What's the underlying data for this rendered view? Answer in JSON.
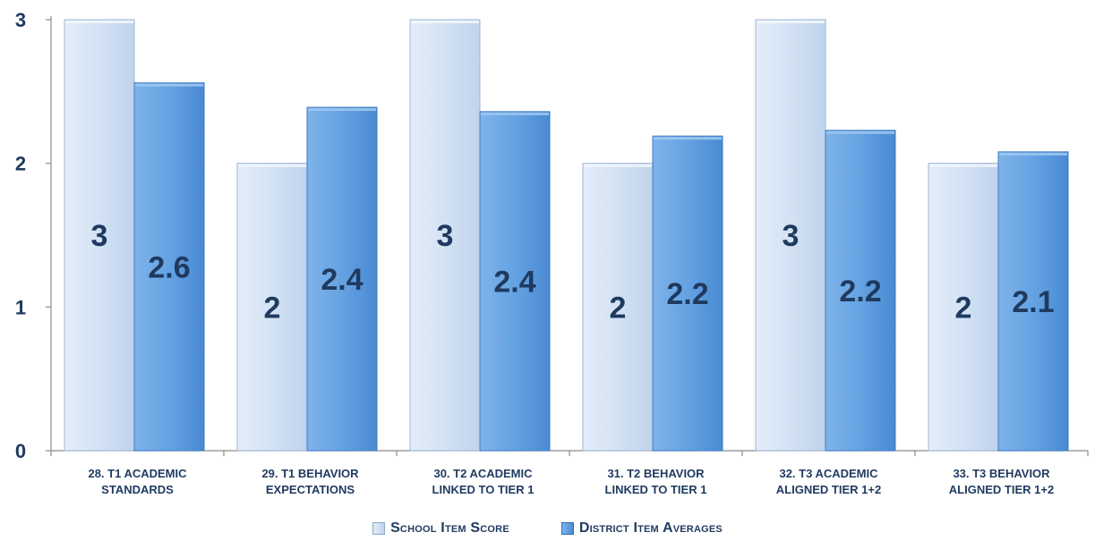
{
  "chart_data": {
    "type": "bar",
    "categories": [
      [
        "28. T1 ACADEMIC",
        "STANDARDS"
      ],
      [
        "29. T1 BEHAVIOR",
        "EXPECTATIONS"
      ],
      [
        "30. T2 ACADEMIC",
        "LINKED TO TIER 1"
      ],
      [
        "31. T2 BEHAVIOR",
        "LINKED TO TIER 1"
      ],
      [
        "32. T3 ACADEMIC",
        "ALIGNED TIER 1+2"
      ],
      [
        "33. T3 BEHAVIOR",
        "ALIGNED TIER 1+2"
      ]
    ],
    "series": [
      {
        "name": "School Item Score",
        "values": [
          3,
          2,
          3,
          2,
          3,
          2
        ],
        "labels": [
          "3",
          "2",
          "3",
          "2",
          "3",
          "2"
        ],
        "color": "#cfdff3"
      },
      {
        "name": "District Item Averages",
        "values": [
          2.56,
          2.39,
          2.36,
          2.19,
          2.23,
          2.08
        ],
        "labels": [
          "2.6",
          "2.4",
          "2.4",
          "2.2",
          "2.2",
          "2.1"
        ],
        "color": "#6aa6e4"
      }
    ],
    "yticks": [
      "0",
      "1",
      "2",
      "3"
    ],
    "ylim": [
      0,
      3
    ],
    "grid": false,
    "legend_position": "bottom"
  }
}
